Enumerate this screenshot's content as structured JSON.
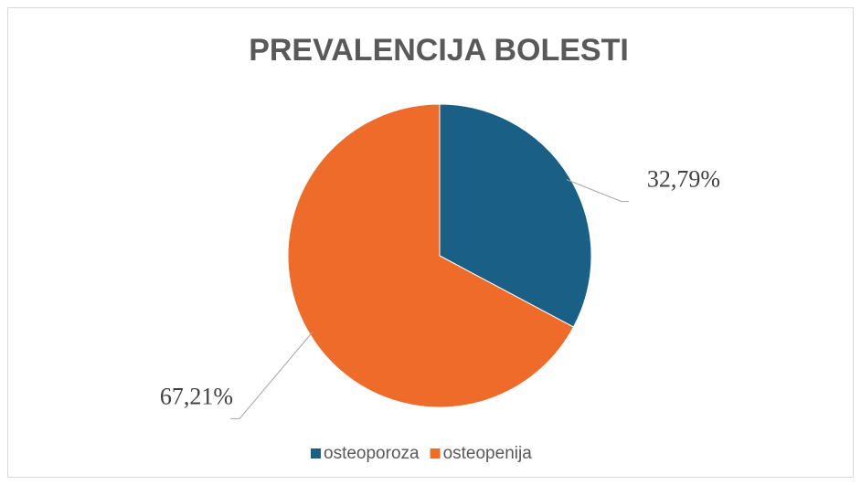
{
  "chart_data": {
    "type": "pie",
    "title": "PREVALENCIJA BOLESTI",
    "categories": [
      "osteoporoza",
      "osteopenija"
    ],
    "values": [
      32.79,
      67.21
    ],
    "value_labels": [
      "32,79%",
      "67,21%"
    ],
    "colors": [
      "#1a5f85",
      "#ef6b2a"
    ],
    "legend": "bottom"
  }
}
